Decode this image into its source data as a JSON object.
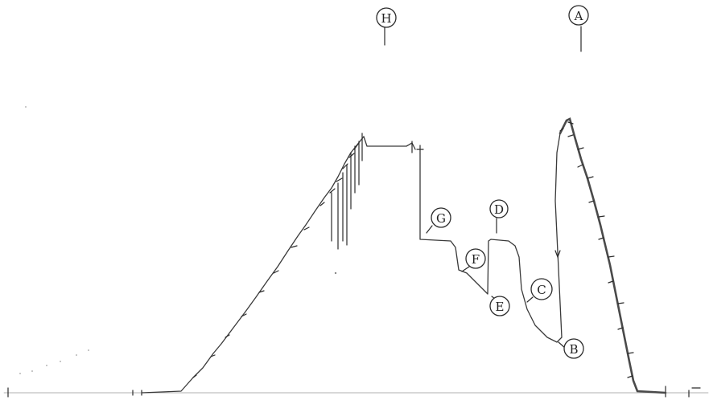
{
  "markers": {
    "h": "H",
    "a": "A",
    "g": "G",
    "d": "D",
    "f": "F",
    "c": "C",
    "e": "E",
    "b": "B"
  },
  "colors": {
    "ink": "#2b2b2b",
    "paper": "#ffffff"
  }
}
